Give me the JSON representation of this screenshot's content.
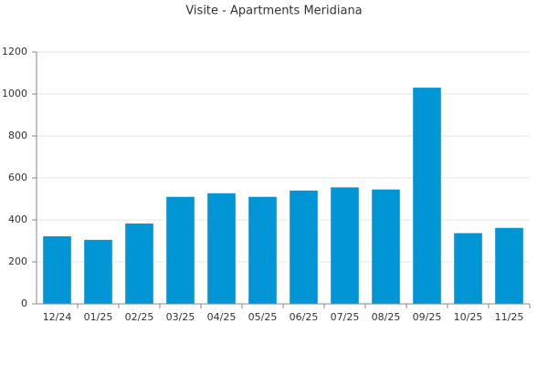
{
  "chart_data": {
    "type": "bar",
    "title": "Visite - Apartments Meridiana",
    "categories": [
      "12/24",
      "01/25",
      "02/25",
      "03/25",
      "04/25",
      "05/25",
      "06/25",
      "07/25",
      "08/25",
      "09/25",
      "10/25",
      "11/25"
    ],
    "values": [
      322,
      305,
      383,
      510,
      527,
      510,
      540,
      555,
      545,
      1030,
      337,
      362
    ],
    "color": "#0096d6",
    "ylim": [
      0,
      1200
    ],
    "yticks": [
      0,
      200,
      400,
      600,
      800,
      1000,
      1200
    ],
    "grid": true
  }
}
